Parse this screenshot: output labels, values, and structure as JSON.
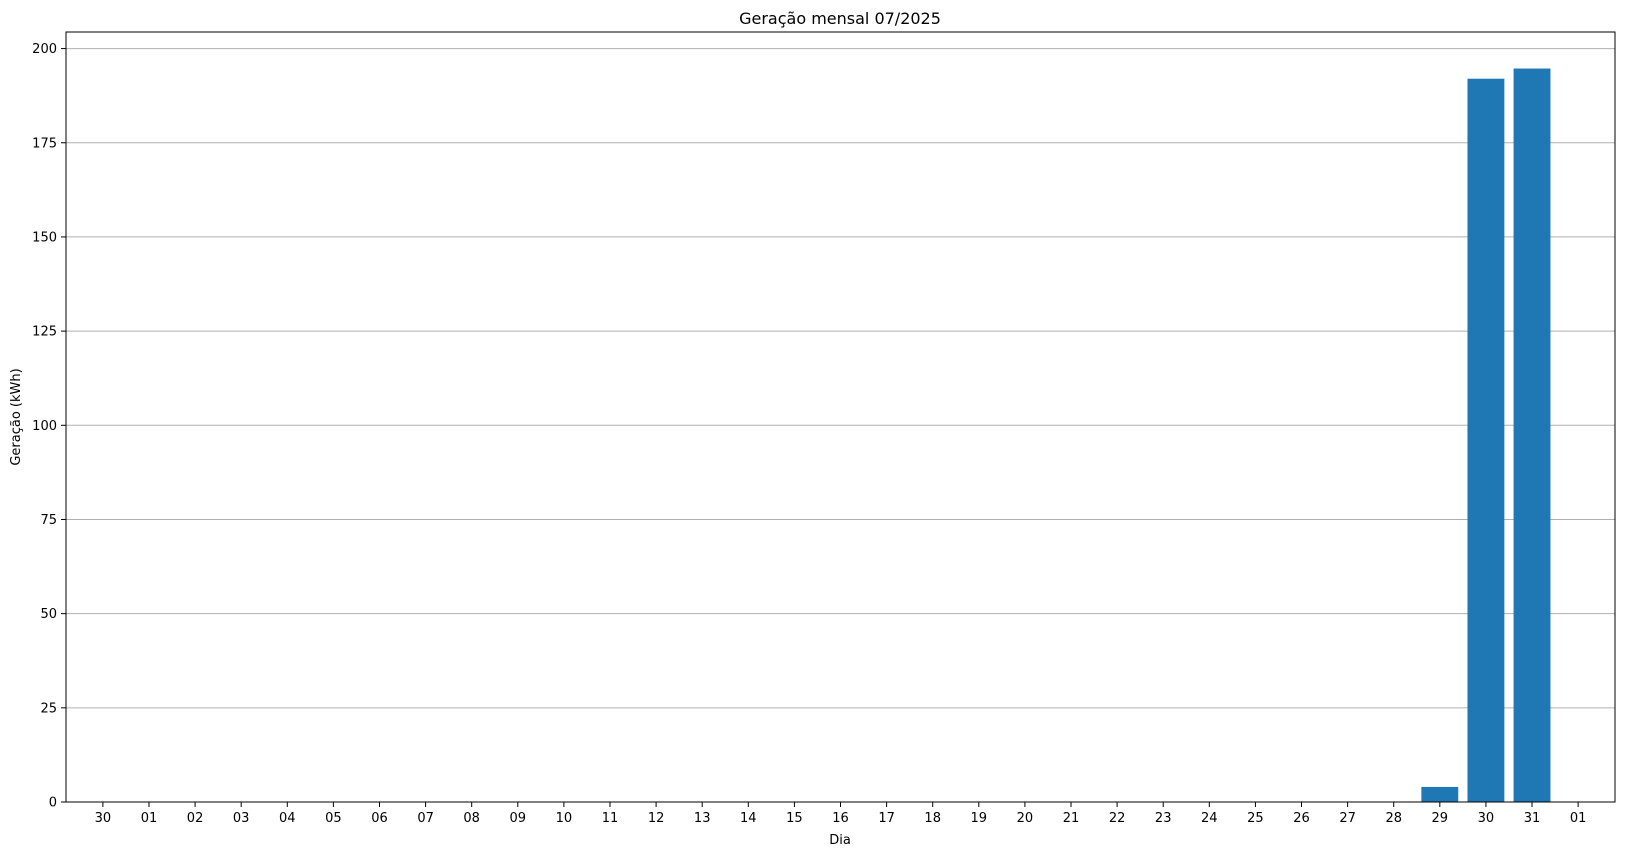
{
  "chart_data": {
    "type": "bar",
    "title": "Geração mensal 07/2025",
    "xlabel": "Dia",
    "ylabel": "Geração (kWh)",
    "categories": [
      "30",
      "01",
      "02",
      "03",
      "04",
      "05",
      "06",
      "07",
      "08",
      "09",
      "10",
      "11",
      "12",
      "13",
      "14",
      "15",
      "16",
      "17",
      "18",
      "19",
      "20",
      "21",
      "22",
      "23",
      "24",
      "25",
      "26",
      "27",
      "28",
      "29",
      "30",
      "31",
      "01"
    ],
    "values": [
      0,
      0,
      0,
      0,
      0,
      0,
      0,
      0,
      0,
      0,
      0,
      0,
      0,
      0,
      0,
      0,
      0,
      0,
      0,
      0,
      0,
      0,
      0,
      0,
      0,
      0,
      0,
      0,
      0,
      4,
      192,
      194.7,
      0
    ],
    "yticks": [
      0,
      25,
      50,
      75,
      100,
      125,
      150,
      175,
      200
    ],
    "ylim": [
      0,
      204.4
    ],
    "grid": "y",
    "bar_color": "#1f77b4",
    "grid_color": "#b0b0b0"
  }
}
